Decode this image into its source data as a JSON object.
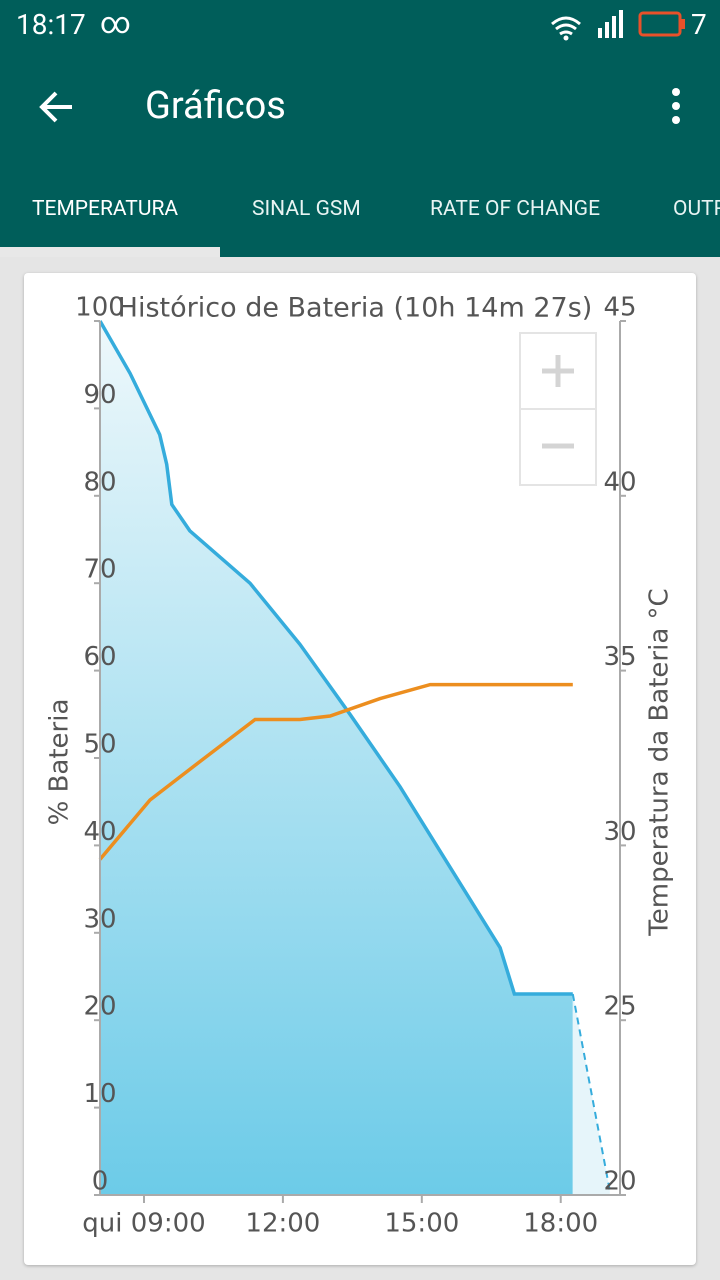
{
  "status_bar": {
    "time": "18:17",
    "battery": "7"
  },
  "app_bar": {
    "title": "Gráficos"
  },
  "tabs": [
    "TEMPERATURA",
    "SINAL GSM",
    "RATE OF CHANGE",
    "OUTROS"
  ],
  "chart_data": {
    "type": "line",
    "title": "Histórico de Bateria (10h 14m 27s)",
    "y_label": "% Bateria",
    "y2_label": "Temperatura da Bateria °C",
    "xlim": [
      8.05,
      19.28
    ],
    "xticks": [
      {
        "value": 9,
        "label": "qui 09:00"
      },
      {
        "value": 12,
        "label": "12:00"
      },
      {
        "value": 15,
        "label": "15:00"
      },
      {
        "value": 18,
        "label": "18:00"
      }
    ],
    "ylim": [
      0,
      100
    ],
    "yticks": [
      0,
      10,
      20,
      30,
      40,
      50,
      60,
      70,
      80,
      90,
      100
    ],
    "y2lim": [
      20,
      45
    ],
    "y2ticks": [
      20,
      25,
      30,
      35,
      40,
      45
    ],
    "series": [
      {
        "color": "#35acdc",
        "fill": true,
        "x": [
          8.05,
          8.7,
          9.34,
          9.49,
          9.6,
          9.99,
          11.29,
          12.37,
          13.45,
          14.53,
          15.61,
          16.69,
          17.0,
          18.26
        ],
        "values": [
          100,
          94,
          87,
          83.6,
          79,
          76,
          70,
          63,
          55,
          46.7,
          37.5,
          28.3,
          23,
          23
        ]
      },
      {
        "color": "#35acdc",
        "fill": true,
        "dashed": true,
        "x": [
          18.26,
          19.06
        ],
        "values": [
          23,
          0.5
        ]
      },
      {
        "color": "#ec8e1f",
        "axis": "y2",
        "x": [
          8.05,
          9.13,
          10.21,
          11.4,
          12.37,
          13.02,
          14.1,
          15.18,
          18.26
        ],
        "values": [
          29.6,
          31.3,
          32.4,
          33.6,
          33.6,
          33.7,
          34.2,
          34.6,
          34.6
        ]
      }
    ]
  }
}
